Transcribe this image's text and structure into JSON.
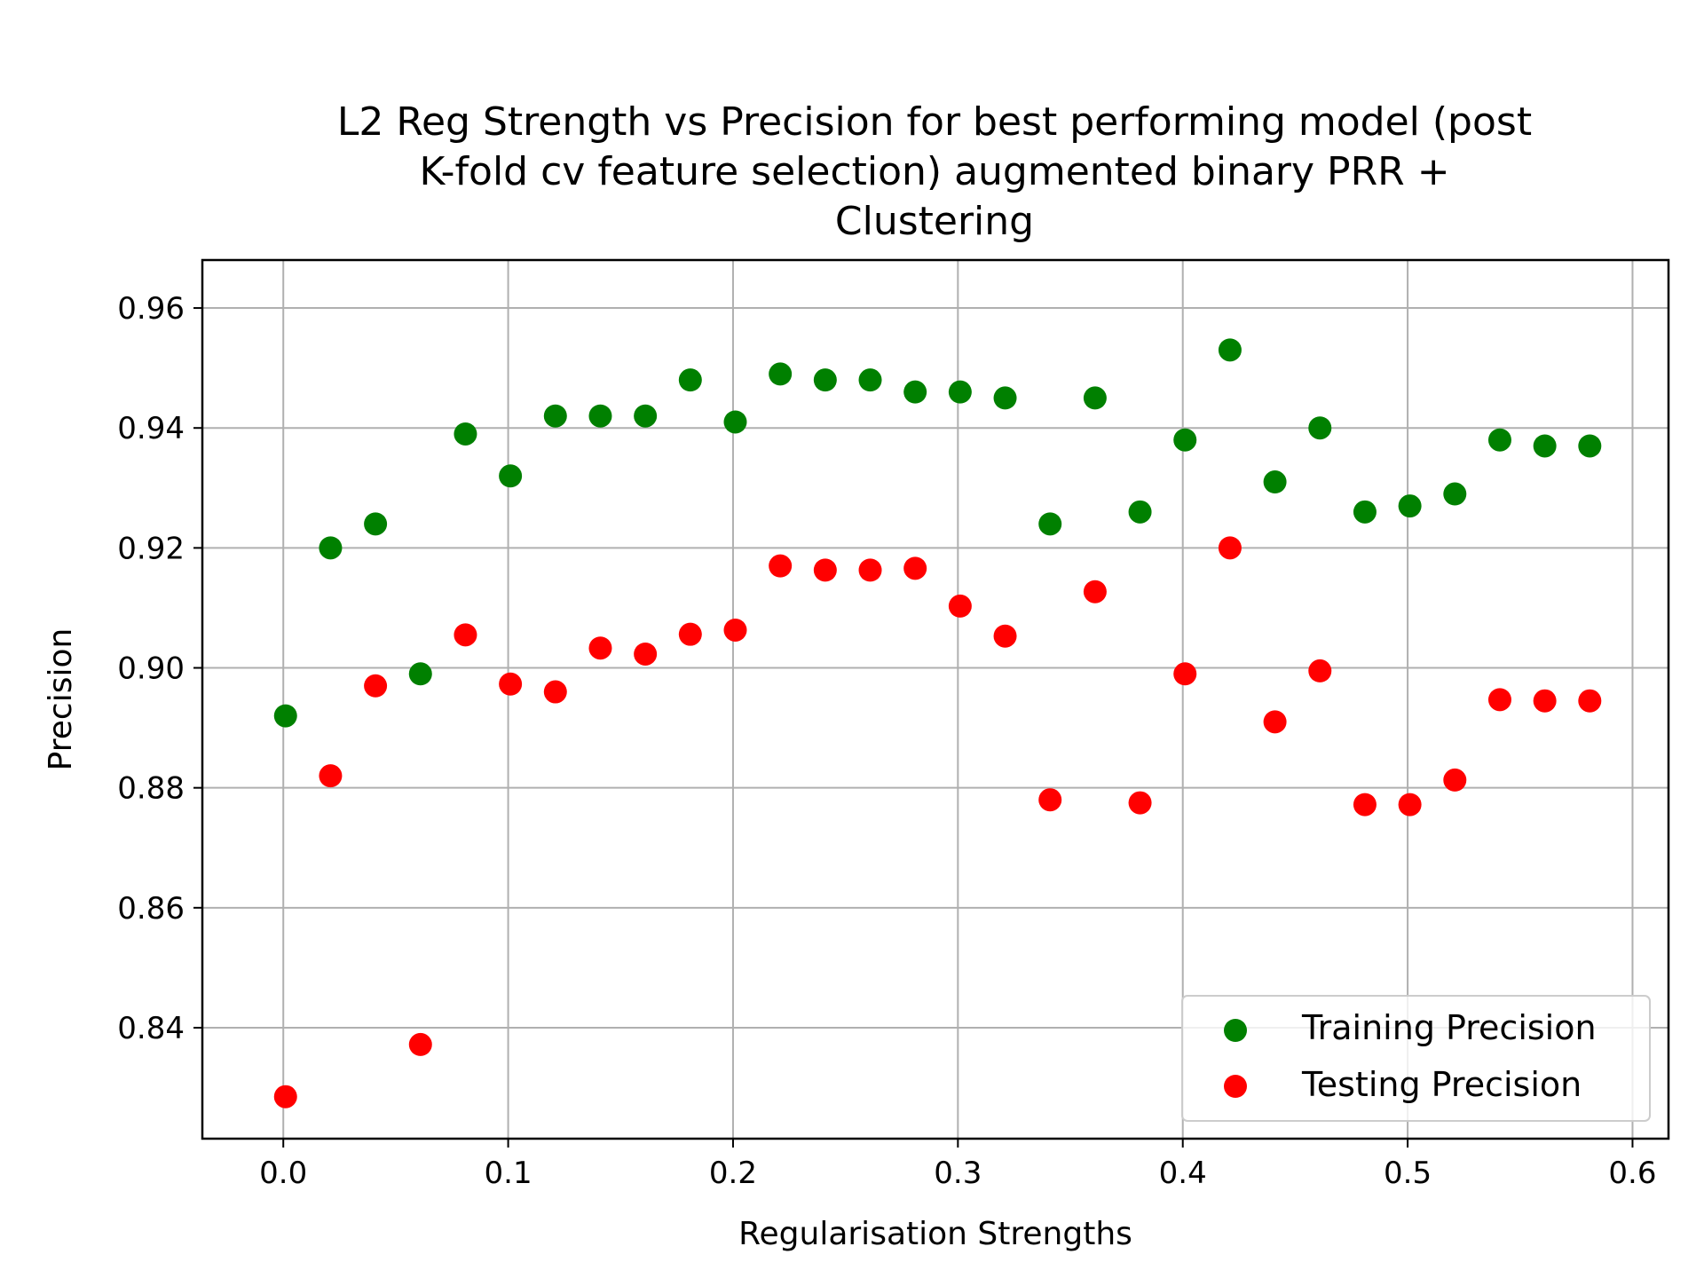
{
  "chart_data": {
    "type": "scatter",
    "title": "L2 Reg Strength vs Precision for best performing model (post K-fold cv feature selection) augmented binary PRR + Clustering",
    "title_lines": [
      "L2 Reg Strength vs Precision for best performing model (post",
      "K-fold cv feature selection) augmented binary PRR +",
      "Clustering"
    ],
    "xlabel": "Regularisation Strengths",
    "ylabel": "Precision",
    "xlim": [
      -0.036,
      0.616
    ],
    "ylim": [
      0.8215,
      0.968
    ],
    "xticks": [
      0.0,
      0.1,
      0.2,
      0.3,
      0.4,
      0.5,
      0.6
    ],
    "xtick_labels": [
      "0.0",
      "0.1",
      "0.2",
      "0.3",
      "0.4",
      "0.5",
      "0.6"
    ],
    "yticks": [
      0.84,
      0.86,
      0.88,
      0.9,
      0.92,
      0.94,
      0.96
    ],
    "ytick_labels": [
      "0.84",
      "0.86",
      "0.88",
      "0.90",
      "0.92",
      "0.94",
      "0.96"
    ],
    "grid": true,
    "legend_position": "lower-right",
    "x": [
      0.001,
      0.021,
      0.041,
      0.061,
      0.081,
      0.101,
      0.121,
      0.141,
      0.161,
      0.181,
      0.201,
      0.221,
      0.241,
      0.261,
      0.281,
      0.301,
      0.321,
      0.341,
      0.361,
      0.381,
      0.401,
      0.421,
      0.441,
      0.461,
      0.481,
      0.501,
      0.521,
      0.541,
      0.561,
      0.581
    ],
    "series": [
      {
        "name": "Training Precision",
        "color": "#008000",
        "values": [
          0.892,
          0.92,
          0.924,
          0.899,
          0.939,
          0.932,
          0.942,
          0.942,
          0.942,
          0.948,
          0.941,
          0.949,
          0.948,
          0.948,
          0.946,
          0.946,
          0.945,
          0.924,
          0.945,
          0.926,
          0.938,
          0.953,
          0.931,
          0.94,
          0.926,
          0.927,
          0.929,
          0.938,
          0.937,
          0.937
        ]
      },
      {
        "name": "Testing Precision",
        "color": "#ff0000",
        "values": [
          0.8285,
          0.882,
          0.897,
          0.8372,
          0.9055,
          0.8973,
          0.896,
          0.9033,
          0.9023,
          0.9056,
          0.9063,
          0.917,
          0.9163,
          0.9163,
          0.9166,
          0.9103,
          0.9053,
          0.878,
          0.9127,
          0.8775,
          0.899,
          0.92,
          0.891,
          0.8995,
          0.8772,
          0.8772,
          0.8813,
          0.8947,
          0.8945,
          0.8945
        ]
      }
    ]
  }
}
